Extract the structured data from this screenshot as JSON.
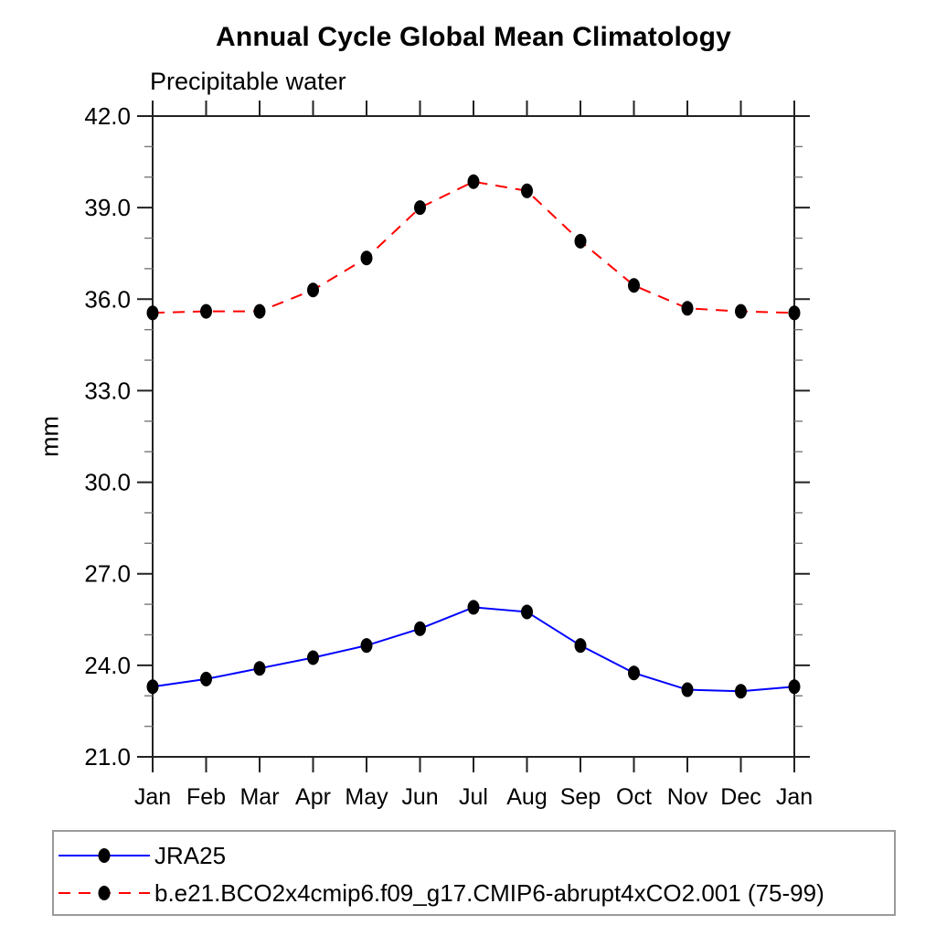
{
  "page": {
    "background": "#ffffff"
  },
  "chart_data": {
    "type": "line",
    "title": "Annual Cycle Global Mean Climatology",
    "subtitle": "Precipitable water",
    "xlabel": "",
    "ylabel": "mm",
    "ylim": [
      21.0,
      42.0
    ],
    "ytick_major_step": 3.0,
    "ytick_minor_step": 1.0,
    "ytick_labels": [
      "21.0",
      "24.0",
      "27.0",
      "30.0",
      "33.0",
      "36.0",
      "39.0",
      "42.0"
    ],
    "categories": [
      "Jan",
      "Feb",
      "Mar",
      "Apr",
      "May",
      "Jun",
      "Jul",
      "Aug",
      "Sep",
      "Oct",
      "Nov",
      "Dec",
      "Jan"
    ],
    "grid": false,
    "legend_position": "bottom-outside",
    "series": [
      {
        "name": "JRA25",
        "color": "#0000ff",
        "line_style": "solid",
        "marker": "filled-circle",
        "marker_color": "#000000",
        "values": [
          23.3,
          23.55,
          23.9,
          24.25,
          24.65,
          25.2,
          25.9,
          25.75,
          24.65,
          23.75,
          23.2,
          23.15,
          23.3
        ]
      },
      {
        "name": "b.e21.BCO2x4cmip6.f09_g17.CMIP6-abrupt4xCO2.001 (75-99)",
        "color": "#ff0000",
        "line_style": "dashed",
        "marker": "filled-circle",
        "marker_color": "#000000",
        "values": [
          35.55,
          35.6,
          35.6,
          36.3,
          37.35,
          39.0,
          39.85,
          39.55,
          37.9,
          36.45,
          35.7,
          35.6,
          35.55
        ]
      }
    ],
    "axis_color": "#222222",
    "minor_tick_color": "#777777"
  }
}
